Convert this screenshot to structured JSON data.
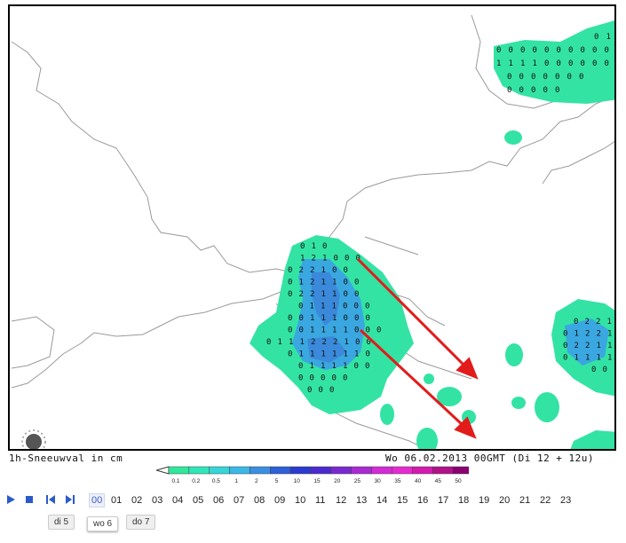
{
  "map": {
    "caption_left": "1h-Sneeuwval in cm",
    "caption_right": "Wo 06.02.2013 00GMT (Di 12 + 12u)",
    "fill_color": "#33e3a4",
    "core_color": "#3aa7e0",
    "deep_color": "#3b82d8",
    "arrow_color": "#e21b1b",
    "grid_rows": [
      [
        "0",
        "1",
        "0"
      ],
      [
        "1",
        "2",
        "1",
        "0",
        "0",
        "0"
      ],
      [
        "0",
        "2",
        "2",
        "1",
        "0",
        "0"
      ],
      [
        "0",
        "1",
        "2",
        "1",
        "1",
        "0",
        "0"
      ],
      [
        "0",
        "2",
        "2",
        "1",
        "1",
        "0",
        "0"
      ],
      [
        "0",
        "1",
        "1",
        "1",
        "0",
        "0",
        "0"
      ],
      [
        "0",
        "0",
        "1",
        "1",
        "1",
        "0",
        "0",
        "0"
      ],
      [
        "0",
        "0",
        "1",
        "1",
        "1",
        "1",
        "0",
        "0",
        "0"
      ],
      [
        "0",
        "1",
        "1",
        "1",
        "2",
        "2",
        "2",
        "1",
        "0",
        "0"
      ],
      [
        "0",
        "1",
        "1",
        "1",
        "1",
        "1",
        "1",
        "0"
      ],
      [
        "0",
        "1",
        "1",
        "1",
        "1",
        "0",
        "0"
      ],
      [
        "0",
        "0",
        "0",
        "0",
        "0"
      ],
      [
        "0",
        "0",
        "0"
      ]
    ],
    "ne_rows": [
      [
        "0",
        "1"
      ],
      [
        "0",
        "0",
        "0",
        "0",
        "0",
        "0",
        "0",
        "0",
        "0",
        "0"
      ],
      [
        "1",
        "1",
        "1",
        "1",
        "0",
        "0",
        "0",
        "0",
        "0",
        "0"
      ],
      [
        "0",
        "0",
        "0",
        "0",
        "0",
        "0",
        "0"
      ],
      [
        "0",
        "0",
        "0",
        "0",
        "0"
      ]
    ],
    "east_rows": [
      [
        "0",
        "2",
        "2",
        "1"
      ],
      [
        "0",
        "1",
        "2",
        "2",
        "1",
        "1"
      ],
      [
        "0",
        "2",
        "2",
        "1",
        "1"
      ],
      [
        "0",
        "1",
        "1",
        "1",
        "1"
      ],
      [
        "0",
        "0"
      ]
    ]
  },
  "scale": {
    "labels": [
      "0.1",
      "0.2",
      "0.5",
      "1",
      "2",
      "5",
      "10",
      "15",
      "20",
      "25",
      "30",
      "35",
      "40",
      "45",
      "50"
    ],
    "colors": [
      "#ffffff",
      "#2fe89c",
      "#30e6b8",
      "#35d6d8",
      "#3ab8e6",
      "#3a8fe0",
      "#2d5fd8",
      "#2a3ad0",
      "#4a2ad0",
      "#7a28d0",
      "#a82ad4",
      "#d42ad8",
      "#e62ad0",
      "#d41ab0",
      "#b0108a",
      "#8a0070"
    ]
  },
  "controls": {
    "hours": [
      "00",
      "01",
      "02",
      "03",
      "04",
      "05",
      "06",
      "07",
      "08",
      "09",
      "10",
      "11",
      "12",
      "13",
      "14",
      "15",
      "16",
      "17",
      "18",
      "19",
      "20",
      "21",
      "22",
      "23"
    ],
    "active_hour": "00"
  },
  "days": [
    {
      "label": "di 5",
      "active": false
    },
    {
      "label": "wo 6",
      "active": true
    },
    {
      "label": "do 7",
      "active": false
    }
  ]
}
